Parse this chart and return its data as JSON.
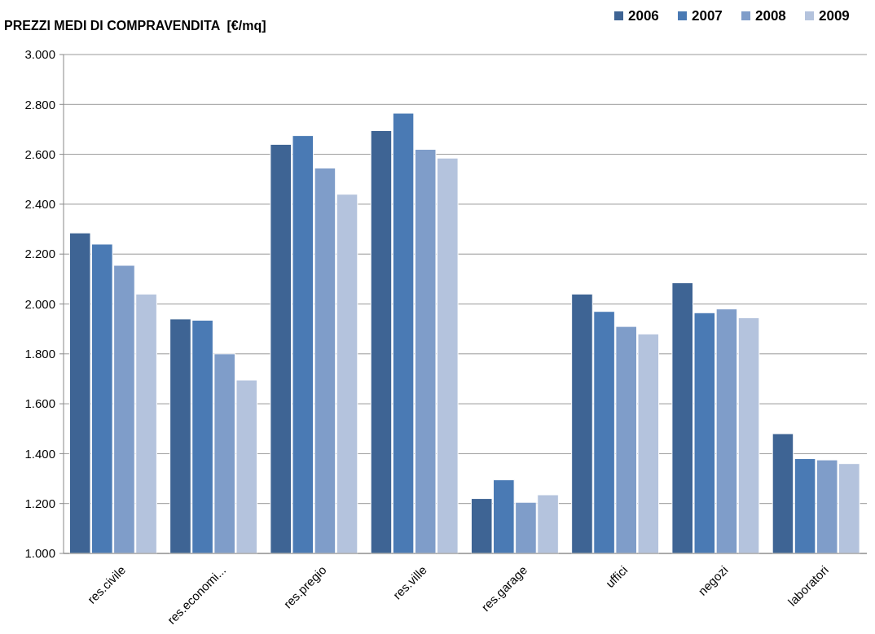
{
  "chart_data": {
    "type": "bar",
    "title": "PREZZI MEDI DI COMPRAVENDITA  [€/mq]",
    "categories": [
      "res.civile",
      "res.economi...",
      "res.pregio",
      "res.ville",
      "res.garage",
      "uffici",
      "negozi",
      "laboratori"
    ],
    "series": [
      {
        "name": "2006",
        "color": "#3e6494",
        "values": [
          2285,
          1940,
          2640,
          2695,
          1220,
          2040,
          2085,
          1480
        ]
      },
      {
        "name": "2007",
        "color": "#4a7ab4",
        "values": [
          2240,
          1935,
          2675,
          2765,
          1295,
          1970,
          1965,
          1380
        ]
      },
      {
        "name": "2008",
        "color": "#7f9dc9",
        "values": [
          2155,
          1800,
          2545,
          2620,
          1205,
          1910,
          1980,
          1375
        ]
      },
      {
        "name": "2009",
        "color": "#b4c3dd",
        "values": [
          2040,
          1695,
          2440,
          2585,
          1235,
          1880,
          1945,
          1360
        ]
      }
    ],
    "ylim": [
      1000,
      3000
    ],
    "yticks": [
      {
        "value": 1000,
        "label": "1.000"
      },
      {
        "value": 1200,
        "label": "1.200"
      },
      {
        "value": 1400,
        "label": "1.400"
      },
      {
        "value": 1600,
        "label": "1.600"
      },
      {
        "value": 1800,
        "label": "1.800"
      },
      {
        "value": 2000,
        "label": "2.000"
      },
      {
        "value": 2200,
        "label": "2.200"
      },
      {
        "value": 2400,
        "label": "2.400"
      },
      {
        "value": 2600,
        "label": "2.600"
      },
      {
        "value": 2800,
        "label": "2.800"
      },
      {
        "value": 3000,
        "label": "3.000"
      }
    ],
    "grid": "y",
    "legend": "top right"
  }
}
